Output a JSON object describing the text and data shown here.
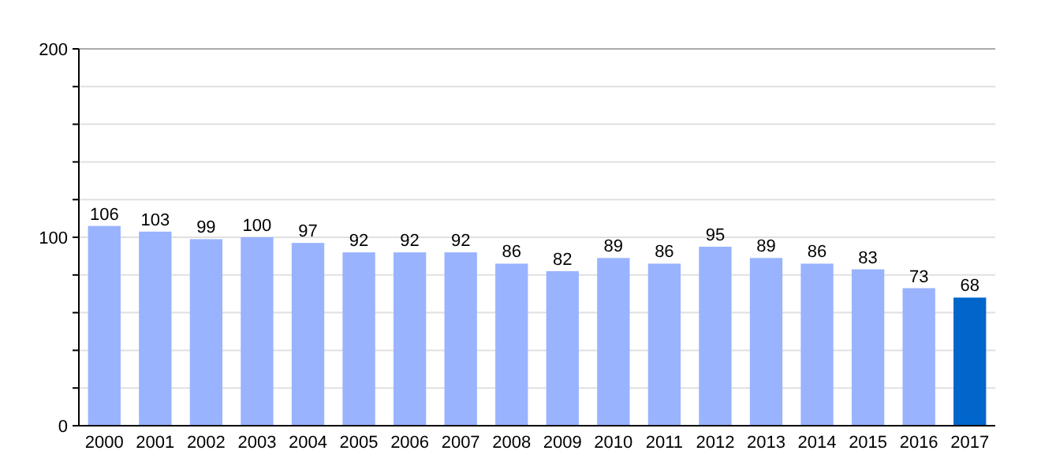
{
  "chart_data": {
    "type": "bar",
    "categories": [
      "2000",
      "2001",
      "2002",
      "2003",
      "2004",
      "2005",
      "2006",
      "2007",
      "2008",
      "2009",
      "2010",
      "2011",
      "2012",
      "2013",
      "2014",
      "2015",
      "2016",
      "2017"
    ],
    "values": [
      106,
      103,
      99,
      100,
      97,
      92,
      92,
      92,
      86,
      82,
      89,
      86,
      95,
      89,
      86,
      83,
      73,
      68
    ],
    "colors": [
      "#99b3ff",
      "#99b3ff",
      "#99b3ff",
      "#99b3ff",
      "#99b3ff",
      "#99b3ff",
      "#99b3ff",
      "#99b3ff",
      "#99b3ff",
      "#99b3ff",
      "#99b3ff",
      "#99b3ff",
      "#99b3ff",
      "#99b3ff",
      "#99b3ff",
      "#99b3ff",
      "#99b3ff",
      "#0066cc"
    ],
    "ylim": [
      0,
      200
    ],
    "yticks": [
      0,
      {
        "value": 20,
        "label": null
      },
      {
        "value": 40,
        "label": null
      },
      {
        "value": 60,
        "label": null
      },
      {
        "value": 80,
        "label": null
      },
      100,
      {
        "value": 120,
        "label": null
      },
      {
        "value": 140,
        "label": null
      },
      {
        "value": 160,
        "label": null
      },
      {
        "value": 180,
        "label": null
      },
      200
    ],
    "grid": "y",
    "data_labels": true
  }
}
